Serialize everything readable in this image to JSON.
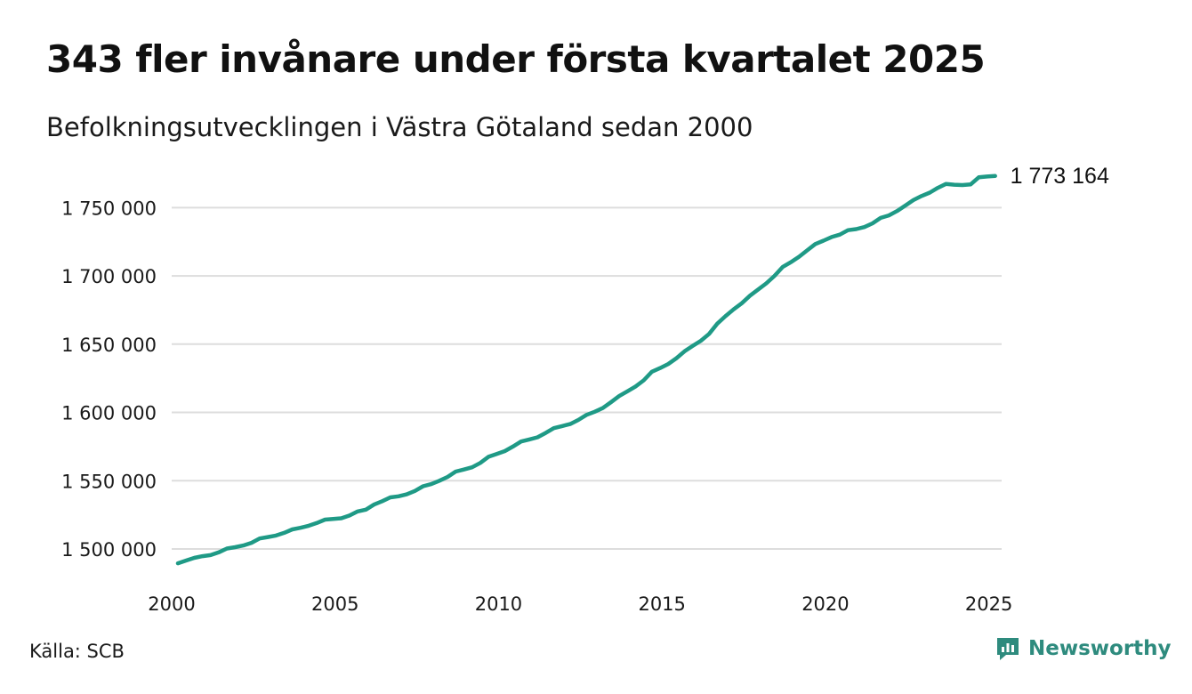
{
  "header": {
    "title": "343 fler invånare under första kvartalet 2025",
    "subtitle": "Befolkningsutvecklingen i Västra Götaland sedan 2000"
  },
  "footer": {
    "source": "Källa: SCB",
    "brand": "Newsworthy",
    "brand_icon": "newsworthy-logo-icon"
  },
  "colors": {
    "line": "#1f9a86",
    "grid": "#dddddd",
    "brand": "#2e8b7e"
  },
  "chart_data": {
    "type": "line",
    "title": "343 fler invånare under första kvartalet 2025",
    "subtitle": "Befolkningsutvecklingen i Västra Götaland sedan 2000",
    "xlabel": "",
    "ylabel": "",
    "xlim": [
      2000,
      2025.2
    ],
    "ylim": [
      1485000,
      1775000
    ],
    "x_ticks": [
      2000,
      2005,
      2010,
      2015,
      2020,
      2025
    ],
    "x_tick_labels": [
      "2000",
      "2005",
      "2010",
      "2015",
      "2020",
      "2025"
    ],
    "y_ticks": [
      1500000,
      1550000,
      1600000,
      1650000,
      1700000,
      1750000
    ],
    "y_tick_labels": [
      "1 500 000",
      "1 550 000",
      "1 600 000",
      "1 650 000",
      "1 700 000",
      "1 750 000"
    ],
    "grid": "horizontal",
    "end_label": "1 773 164",
    "series": [
      {
        "x": [
          2000.0,
          2000.25,
          2000.5,
          2000.75,
          2001.0,
          2001.25,
          2001.5,
          2001.75,
          2002.0,
          2002.25,
          2002.5,
          2002.75,
          2003.0,
          2003.25,
          2003.5,
          2003.75,
          2004.0,
          2004.25,
          2004.5,
          2004.75,
          2005.0,
          2005.25,
          2005.5,
          2005.75,
          2006.0,
          2006.25,
          2006.5,
          2006.75,
          2007.0,
          2007.25,
          2007.5,
          2007.75,
          2008.0,
          2008.25,
          2008.5,
          2008.75,
          2009.0,
          2009.25,
          2009.5,
          2009.75,
          2010.0,
          2010.25,
          2010.5,
          2010.75,
          2011.0,
          2011.25,
          2011.5,
          2011.75,
          2012.0,
          2012.25,
          2012.5,
          2012.75,
          2013.0,
          2013.25,
          2013.5,
          2013.75,
          2014.0,
          2014.25,
          2014.5,
          2014.75,
          2015.0,
          2015.25,
          2015.5,
          2015.75,
          2016.0,
          2016.25,
          2016.5,
          2016.75,
          2017.0,
          2017.25,
          2017.5,
          2017.75,
          2018.0,
          2018.25,
          2018.5,
          2018.75,
          2019.0,
          2019.25,
          2019.5,
          2019.75,
          2020.0,
          2020.25,
          2020.5,
          2020.75,
          2021.0,
          2021.25,
          2021.5,
          2021.75,
          2022.0,
          2022.25,
          2022.5,
          2022.75,
          2023.0,
          2023.25,
          2023.5,
          2023.75,
          2024.0,
          2024.25,
          2024.5,
          2024.75,
          2025.0
        ],
        "values": [
          1489500,
          1491500,
          1493500,
          1494700,
          1495500,
          1497500,
          1500300,
          1501300,
          1502500,
          1504500,
          1507700,
          1508700,
          1509800,
          1511800,
          1514300,
          1515500,
          1517000,
          1519000,
          1521500,
          1522000,
          1522500,
          1524500,
          1527500,
          1528800,
          1532500,
          1535000,
          1537800,
          1538600,
          1540000,
          1542500,
          1545900,
          1547500,
          1550000,
          1552800,
          1556700,
          1558200,
          1559800,
          1563000,
          1567500,
          1569500,
          1571700,
          1575000,
          1578700,
          1580200,
          1581800,
          1585000,
          1588500,
          1590000,
          1591500,
          1594500,
          1598200,
          1600500,
          1603200,
          1607500,
          1612000,
          1615500,
          1619000,
          1623500,
          1629800,
          1632500,
          1635500,
          1639700,
          1644800,
          1648700,
          1652500,
          1657500,
          1665000,
          1670500,
          1675500,
          1680000,
          1685500,
          1690000,
          1694500,
          1700000,
          1706500,
          1710000,
          1714000,
          1718700,
          1723300,
          1725800,
          1728500,
          1730200,
          1733500,
          1734300,
          1735800,
          1738500,
          1742500,
          1744300,
          1747500,
          1751500,
          1755500,
          1758500,
          1761000,
          1764500,
          1767400,
          1766800,
          1766500,
          1767000,
          1772200,
          1772800,
          1773164
        ]
      }
    ]
  }
}
